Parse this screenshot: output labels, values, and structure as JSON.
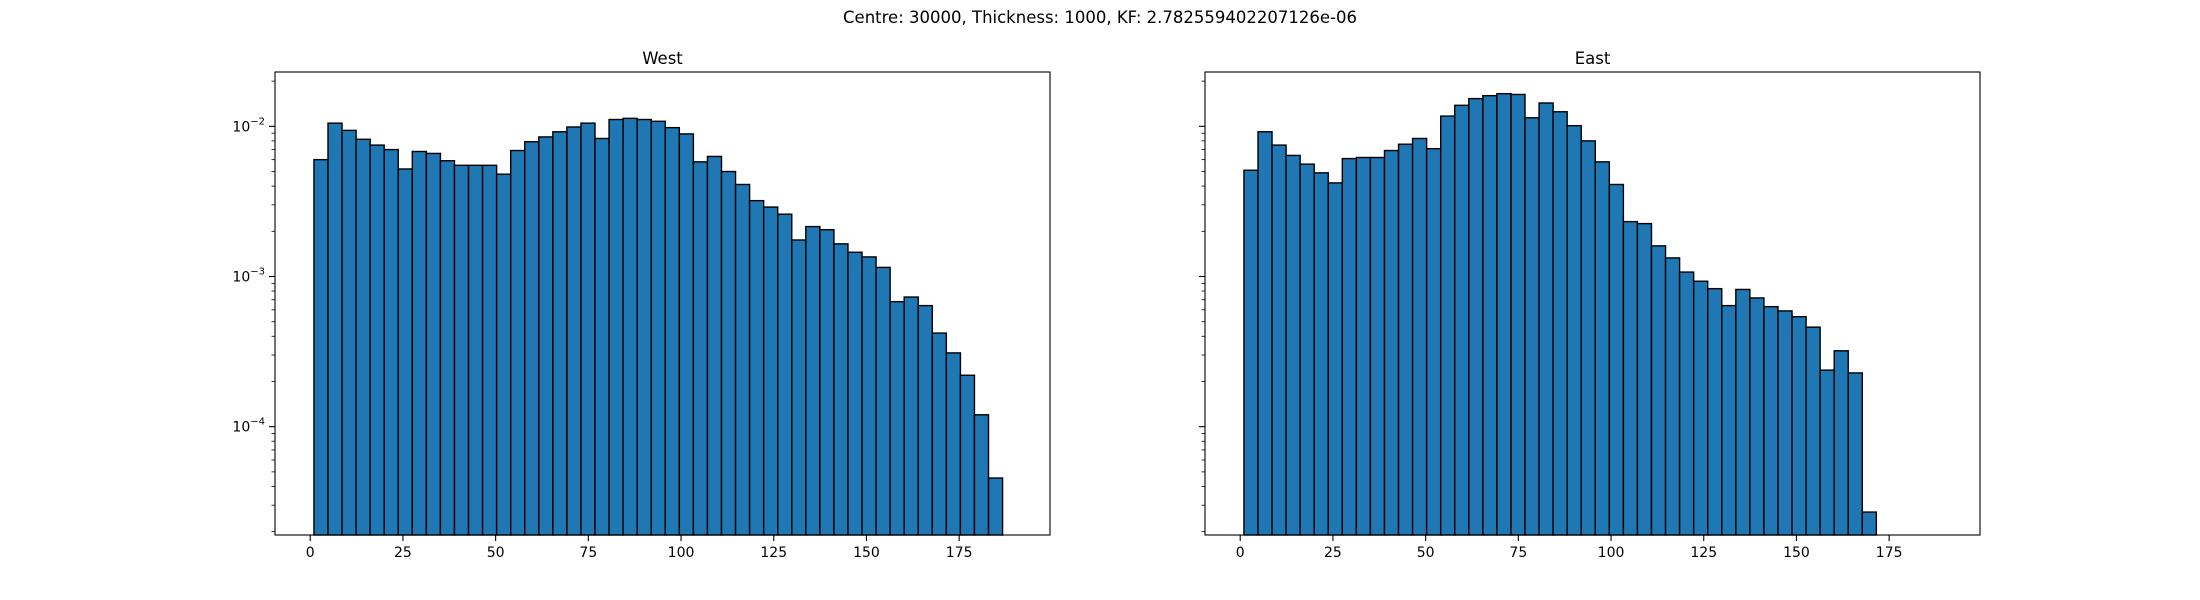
{
  "figure": {
    "suptitle": "Centre: 30000, Thickness: 1000, KF: 2.782559402207126e-06"
  },
  "chart_data": [
    {
      "type": "bar",
      "title": "West",
      "xlabel": "",
      "ylabel": "",
      "yscale": "log",
      "xlim": [
        -9.5,
        199.5
      ],
      "ylim": [
        1.9e-05,
        0.023
      ],
      "xticks": [
        0,
        25,
        50,
        75,
        100,
        125,
        150,
        175
      ],
      "yticks": [
        0.0001,
        0.001,
        0.01
      ],
      "ytick_labels": [
        "10^-4",
        "10^-3",
        "10^-2"
      ],
      "bin_start": 1,
      "bin_width": 3.79,
      "bar_color": "#1f77b4",
      "edge_color": "#000000",
      "values": [
        0.006,
        0.0105,
        0.0094,
        0.0082,
        0.0075,
        0.007,
        0.0052,
        0.0068,
        0.0066,
        0.0059,
        0.0055,
        0.0055,
        0.0055,
        0.0048,
        0.0069,
        0.0079,
        0.0085,
        0.0092,
        0.0099,
        0.0105,
        0.0083,
        0.0111,
        0.0113,
        0.0111,
        0.0108,
        0.0098,
        0.0089,
        0.0058,
        0.0063,
        0.005,
        0.0041,
        0.0032,
        0.0029,
        0.0026,
        0.00175,
        0.00215,
        0.00205,
        0.00165,
        0.00145,
        0.00135,
        0.00115,
        0.00068,
        0.00073,
        0.00064,
        0.00042,
        0.00031,
        0.00022,
        0.00012,
        4.55e-05
      ]
    },
    {
      "type": "bar",
      "title": "East",
      "xlabel": "",
      "ylabel": "",
      "yscale": "log",
      "xlim": [
        -9.5,
        199.5
      ],
      "ylim": [
        1.9e-05,
        0.023
      ],
      "xticks": [
        0,
        25,
        50,
        75,
        100,
        125,
        150,
        175
      ],
      "bin_start": 1,
      "bin_width": 3.79,
      "bar_color": "#1f77b4",
      "edge_color": "#000000",
      "values": [
        0.0051,
        0.0092,
        0.0075,
        0.0064,
        0.0056,
        0.0049,
        0.0042,
        0.0061,
        0.0062,
        0.0062,
        0.0069,
        0.0076,
        0.0083,
        0.0071,
        0.0117,
        0.0138,
        0.0153,
        0.016,
        0.0165,
        0.0163,
        0.0114,
        0.0143,
        0.0125,
        0.0101,
        0.008,
        0.0058,
        0.0041,
        0.00232,
        0.00225,
        0.0016,
        0.00133,
        0.00107,
        0.00093,
        0.00083,
        0.00064,
        0.00082,
        0.00072,
        0.00063,
        0.00059,
        0.00054,
        0.00046,
        0.000238,
        0.00032,
        0.000228,
        2.7e-05
      ]
    }
  ]
}
